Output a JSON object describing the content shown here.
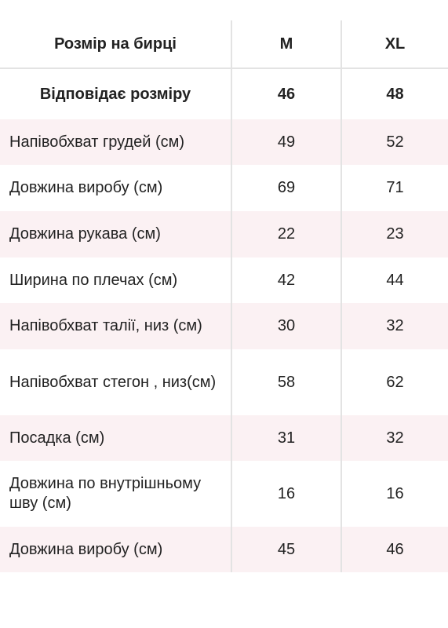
{
  "table": {
    "header": {
      "label": "Розмір на бирці",
      "col1": "M",
      "col2": "XL"
    },
    "subheader": {
      "label": "Відповідає розміру",
      "col1": "46",
      "col2": "48"
    },
    "rows": [
      {
        "label": "Напівобхват грудей (см)",
        "m": "49",
        "xl": "52"
      },
      {
        "label": "Довжина виробу (см)",
        "m": "69",
        "xl": "71"
      },
      {
        "label": "Довжина рукава (см)",
        "m": "22",
        "xl": "23"
      },
      {
        "label": "Ширина по плечах (см)",
        "m": "42",
        "xl": "44"
      },
      {
        "label": "Напівобхват талії, низ (см)",
        "m": "30",
        "xl": "32"
      },
      {
        "label": "Напівобхват стегон , низ(см)",
        "m": "58",
        "xl": "62"
      },
      {
        "label": "Посадка (см)",
        "m": "31",
        "xl": "32"
      },
      {
        "label": "Довжина по внутрішньому шву (см)",
        "m": "16",
        "xl": "16"
      },
      {
        "label": "Довжина виробу (см)",
        "m": "45",
        "xl": "46"
      }
    ]
  },
  "colors": {
    "stripe": "#fbf1f3",
    "divider": "#e3e3e3",
    "text": "#222222"
  }
}
